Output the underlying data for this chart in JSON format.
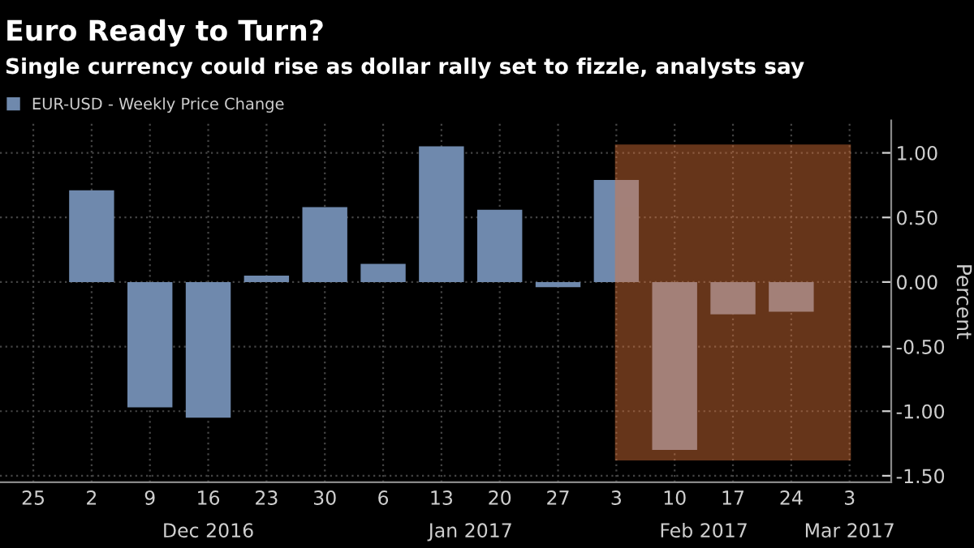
{
  "chart_data": {
    "type": "bar",
    "title": "Euro Ready to Turn?",
    "subtitle": "Single currency could rise as dollar rally set to fizzle, analysts say",
    "ylabel": "Percent",
    "x": [
      "2016-11-25",
      "2016-12-02",
      "2016-12-09",
      "2016-12-16",
      "2016-12-23",
      "2016-12-30",
      "2017-01-06",
      "2017-01-13",
      "2017-01-20",
      "2017-01-27",
      "2017-02-03",
      "2017-02-10",
      "2017-02-17",
      "2017-02-24"
    ],
    "series": [
      {
        "name": "EUR-USD - Weekly Price Change",
        "color": "#6f89ad",
        "values": [
          0.0,
          0.71,
          -0.97,
          -1.05,
          0.05,
          0.58,
          0.14,
          1.05,
          0.56,
          -0.04,
          0.79,
          -1.3,
          -0.25,
          -0.23
        ]
      }
    ],
    "xlim": [
      "2016-11-21",
      "2017-03-08"
    ],
    "xticks": [
      {
        "value": "2016-11-25",
        "label": "25"
      },
      {
        "value": "2016-12-02",
        "label": "2"
      },
      {
        "value": "2016-12-09",
        "label": "9"
      },
      {
        "value": "2016-12-16",
        "label": "16"
      },
      {
        "value": "2016-12-23",
        "label": "23"
      },
      {
        "value": "2016-12-30",
        "label": "30"
      },
      {
        "value": "2017-01-06",
        "label": "6"
      },
      {
        "value": "2017-01-13",
        "label": "13"
      },
      {
        "value": "2017-01-20",
        "label": "20"
      },
      {
        "value": "2017-01-27",
        "label": "27"
      },
      {
        "value": "2017-02-03",
        "label": "3"
      },
      {
        "value": "2017-02-10",
        "label": "10"
      },
      {
        "value": "2017-02-17",
        "label": "17"
      },
      {
        "value": "2017-02-24",
        "label": "24"
      },
      {
        "value": "2017-03-03",
        "label": "3"
      }
    ],
    "ylim": [
      -1.55,
      1.25
    ],
    "yticks": [
      {
        "value": -1.5,
        "label": "-1.50"
      },
      {
        "value": -1.0,
        "label": "-1.00"
      },
      {
        "value": -0.5,
        "label": "-0.50"
      },
      {
        "value": 0,
        "label": "0.00"
      },
      {
        "value": 0.5,
        "label": "0.50"
      },
      {
        "value": 1.0,
        "label": "1.00"
      }
    ],
    "bands": [
      {
        "axis": "x",
        "from": "2017-02-03",
        "to": "2017-03-03",
        "color": "#e2763a"
      }
    ],
    "annotations": [
      "Dec 2016",
      "Jan 2017",
      "Feb 2017",
      "Mar 2017"
    ],
    "grid": true,
    "legend": "top left"
  }
}
